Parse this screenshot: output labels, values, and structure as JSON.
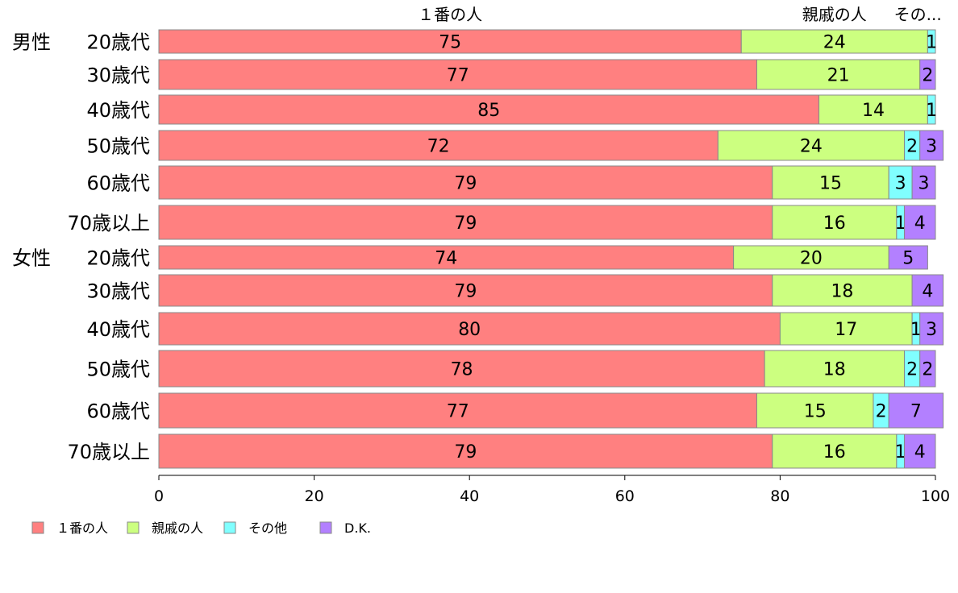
{
  "chart_data": {
    "type": "bar",
    "orientation": "horizontal",
    "stacked": true,
    "title": "",
    "xlabel": "",
    "ylabel": "",
    "xlim": [
      0,
      100
    ],
    "x_ticks": [
      0,
      20,
      40,
      60,
      80,
      100
    ],
    "legend_position": "bottom-left",
    "top_labels": [
      "１番の人",
      "親戚の人",
      "その..."
    ],
    "groups": [
      {
        "label": "男性",
        "start_index": 0
      },
      {
        "label": "女性",
        "start_index": 6
      }
    ],
    "categories": [
      "20歳代",
      "30歳代",
      "40歳代",
      "50歳代",
      "60歳代",
      "70歳以上",
      "20歳代",
      "30歳代",
      "40歳代",
      "50歳代",
      "60歳代",
      "70歳以上"
    ],
    "series": [
      {
        "name": "１番の人",
        "color": "#ff8080",
        "values": [
          75,
          77,
          85,
          72,
          79,
          79,
          74,
          79,
          80,
          78,
          77,
          79
        ]
      },
      {
        "name": "親戚の人",
        "color": "#ccff80",
        "values": [
          24,
          21,
          14,
          24,
          15,
          16,
          20,
          18,
          17,
          18,
          15,
          16
        ]
      },
      {
        "name": "その他",
        "color": "#80ffff",
        "values": [
          1,
          0,
          1,
          2,
          3,
          1,
          0,
          0,
          1,
          2,
          2,
          1
        ]
      },
      {
        "name": "D.K.",
        "color": "#b380ff",
        "values": [
          0,
          2,
          0,
          3,
          3,
          4,
          5,
          4,
          3,
          2,
          7,
          4
        ]
      }
    ]
  }
}
